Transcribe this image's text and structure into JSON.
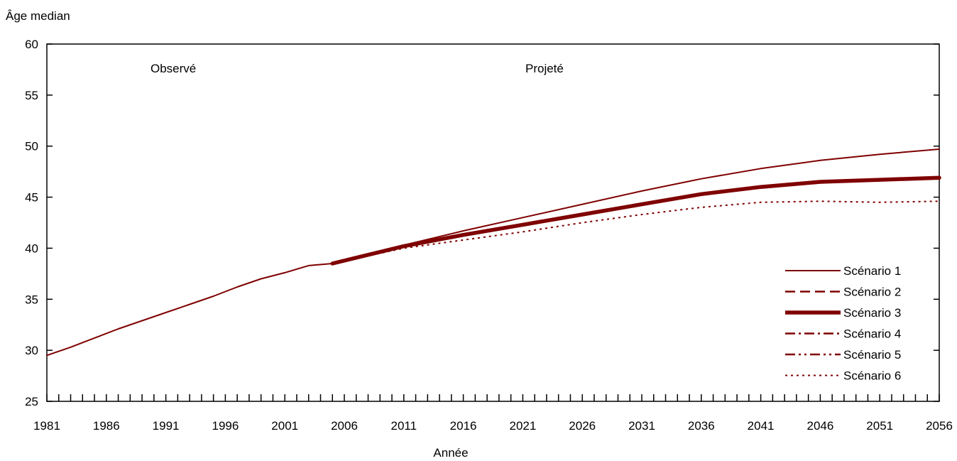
{
  "chart_data": {
    "type": "line",
    "title": "",
    "ylabel": "Âge median",
    "xlabel": "Année",
    "xlim": [
      1981,
      2056
    ],
    "ylim": [
      25,
      60
    ],
    "x_ticks": [
      "1981",
      "1986",
      "1991",
      "1996",
      "2001",
      "2006",
      "2011",
      "2016",
      "2021",
      "2026",
      "2031",
      "2036",
      "2041",
      "2046",
      "2051",
      "2056"
    ],
    "y_ticks": [
      "25",
      "30",
      "35",
      "40",
      "45",
      "50",
      "55",
      "60"
    ],
    "grid": false,
    "legend_position": "bottom-right",
    "period_labels": {
      "observed": "Observé",
      "projected": "Projeté"
    },
    "line_color": "#7f0000",
    "observed": {
      "x": [
        1981,
        1983,
        1985,
        1987,
        1989,
        1991,
        1993,
        1995,
        1997,
        1999,
        2001,
        2003,
        2005
      ],
      "y": [
        29.5,
        30.3,
        31.2,
        32.1,
        32.9,
        33.7,
        34.5,
        35.3,
        36.2,
        37.0,
        37.6,
        38.3,
        38.5
      ]
    },
    "series": [
      {
        "name": "Scénario 1",
        "style": "solid",
        "x": [
          2005,
          2011,
          2016,
          2021,
          2026,
          2031,
          2036,
          2041,
          2046,
          2051,
          2056
        ],
        "y": [
          38.5,
          40.3,
          41.7,
          43.0,
          44.3,
          45.6,
          46.8,
          47.8,
          48.6,
          49.2,
          49.7
        ]
      },
      {
        "name": "Scénario 2",
        "style": "dash",
        "x": [
          2005,
          2011,
          2016,
          2021,
          2026,
          2031,
          2036,
          2041,
          2046,
          2051,
          2056
        ],
        "y": [
          38.5,
          40.2,
          41.3,
          42.3,
          43.3,
          44.3,
          45.3,
          46.0,
          46.5,
          46.7,
          46.9
        ]
      },
      {
        "name": "Scénario 3",
        "style": "thick",
        "x": [
          2005,
          2011,
          2016,
          2021,
          2026,
          2031,
          2036,
          2041,
          2046,
          2051,
          2056
        ],
        "y": [
          38.5,
          40.2,
          41.3,
          42.3,
          43.3,
          44.3,
          45.3,
          46.0,
          46.5,
          46.7,
          46.9
        ]
      },
      {
        "name": "Scénario 4",
        "style": "dashdot",
        "x": [
          2005,
          2011,
          2016,
          2021,
          2026,
          2031,
          2036,
          2041,
          2046,
          2051,
          2056
        ],
        "y": [
          38.5,
          40.2,
          41.3,
          42.3,
          43.3,
          44.3,
          45.3,
          46.0,
          46.5,
          46.7,
          46.9
        ]
      },
      {
        "name": "Scénario 5",
        "style": "dashdotdot",
        "x": [
          2005,
          2011,
          2016,
          2021,
          2026,
          2031,
          2036,
          2041,
          2046,
          2051,
          2056
        ],
        "y": [
          38.5,
          40.2,
          41.3,
          42.3,
          43.3,
          44.3,
          45.3,
          46.0,
          46.5,
          46.7,
          46.9
        ]
      },
      {
        "name": "Scénario 6",
        "style": "dot",
        "x": [
          2005,
          2011,
          2016,
          2021,
          2026,
          2031,
          2036,
          2041,
          2046,
          2051,
          2056
        ],
        "y": [
          38.5,
          40.0,
          40.8,
          41.6,
          42.5,
          43.3,
          44.0,
          44.5,
          44.6,
          44.5,
          44.6
        ]
      }
    ]
  }
}
